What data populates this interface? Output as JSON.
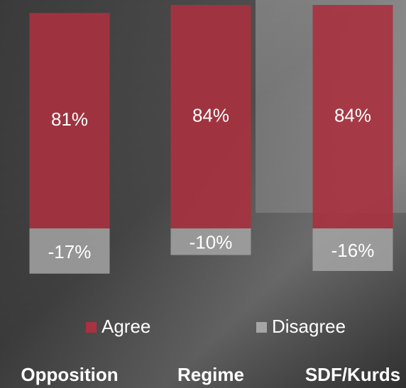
{
  "chart_data": {
    "type": "diverging-bar",
    "categories": [
      "Opposition",
      "Regime",
      "SDF/Kurds"
    ],
    "series": [
      {
        "name": "Agree",
        "color": "#a8323f",
        "values": [
          81,
          84,
          84
        ],
        "value_labels": [
          "81%",
          "84%",
          "84%"
        ]
      },
      {
        "name": "Disagree",
        "color": "#a5a5a5",
        "values": [
          -17,
          -10,
          -16
        ],
        "value_labels": [
          "-17%",
          "-10%",
          "-16%"
        ]
      }
    ]
  }
}
